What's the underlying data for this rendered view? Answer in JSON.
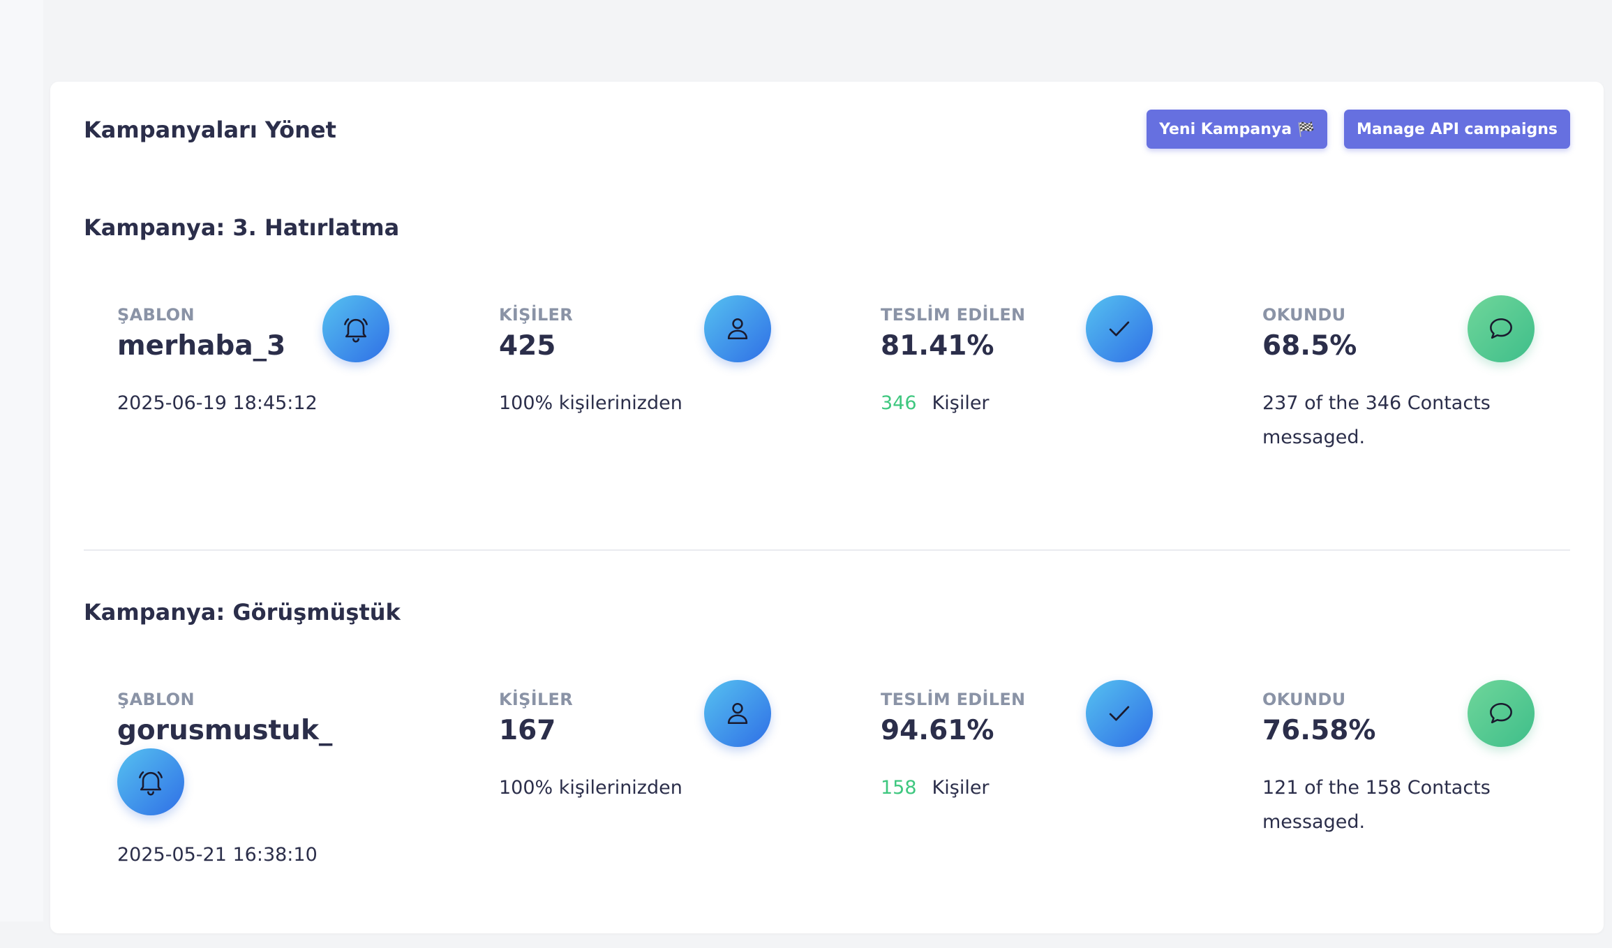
{
  "header": {
    "title": "Kampanyaları Yönet",
    "new_campaign_label": "Yeni Kampanya",
    "new_campaign_emoji": "🏁",
    "manage_api_label": "Manage API campaigns"
  },
  "icons": {
    "template": "bell-icon",
    "contacts": "user-icon",
    "delivered": "check-icon",
    "read": "chat-bubble-icon"
  },
  "colors": {
    "accent_button": "#6670e0",
    "success_text": "#3ec77f",
    "icon_blue_start": "#56c1f0",
    "icon_blue_end": "#2f6fe6",
    "icon_green_start": "#6fd69a",
    "icon_green_end": "#3fbe8a"
  },
  "campaigns": [
    {
      "title": "Kampanya: 3. Hatırlatma",
      "template": {
        "label": "ŞABLON",
        "value": "merhaba_3",
        "date": "2025-06-19 18:45:12"
      },
      "contacts": {
        "label": "KİŞİLER",
        "value": "425",
        "sub": "100% kişilerinizden"
      },
      "delivered": {
        "label": "TESLİM EDİLEN",
        "value": "81.41%",
        "count": "346",
        "count_label": "Kişiler"
      },
      "read": {
        "label": "OKUNDU",
        "value": "68.5%",
        "sub": "237 of the 346 Contacts messaged."
      }
    },
    {
      "title": "Kampanya: Görüşmüştük",
      "template": {
        "label": "ŞABLON",
        "value": "gorusmustuk_",
        "date": "2025-05-21 16:38:10"
      },
      "contacts": {
        "label": "KİŞİLER",
        "value": "167",
        "sub": "100% kişilerinizden"
      },
      "delivered": {
        "label": "TESLİM EDİLEN",
        "value": "94.61%",
        "count": "158",
        "count_label": "Kişiler"
      },
      "read": {
        "label": "OKUNDU",
        "value": "76.58%",
        "sub": "121 of the 158 Contacts messaged."
      }
    }
  ]
}
